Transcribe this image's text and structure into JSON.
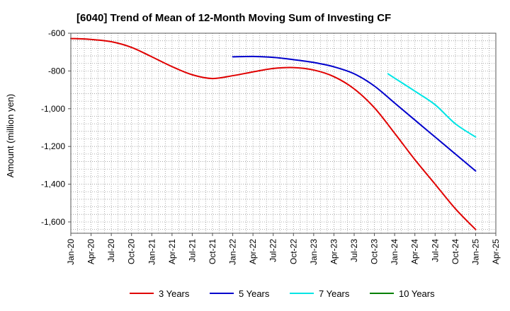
{
  "chart_data": {
    "type": "line",
    "title": "[6040]  Trend of Mean of 12-Month Moving Sum of Investing CF",
    "xlabel": "",
    "ylabel": "Amount (million yen)",
    "ylim": [
      -1660,
      -600
    ],
    "yticks": [
      -600,
      -800,
      -1000,
      -1200,
      -1400,
      -1600
    ],
    "ytick_labels": [
      "-600",
      "-800",
      "-1,000",
      "-1,200",
      "-1,400",
      "-1,600"
    ],
    "xticks": [
      "Jan-20",
      "Apr-20",
      "Jul-20",
      "Oct-20",
      "Jan-21",
      "Apr-21",
      "Jul-21",
      "Oct-21",
      "Jan-22",
      "Apr-22",
      "Jul-22",
      "Oct-22",
      "Jan-23",
      "Apr-23",
      "Jul-23",
      "Oct-23",
      "Jan-24",
      "Apr-24",
      "Jul-24",
      "Oct-24",
      "Jan-25",
      "Apr-25"
    ],
    "x_unit": "quarter index from Jan-20",
    "grid": true,
    "legend_position": "bottom",
    "series": [
      {
        "name": "3 Years",
        "color": "#e00000",
        "x": [
          0,
          1,
          2,
          3,
          4,
          5,
          6,
          7,
          8,
          9,
          10,
          11,
          12,
          13,
          14,
          15,
          16,
          17,
          18,
          19,
          20
        ],
        "values": [
          -628,
          -633,
          -645,
          -675,
          -725,
          -777,
          -820,
          -840,
          -825,
          -805,
          -787,
          -782,
          -795,
          -830,
          -895,
          -995,
          -1130,
          -1270,
          -1400,
          -1530,
          -1640
        ]
      },
      {
        "name": "5 Years",
        "color": "#0000cc",
        "x": [
          8,
          9,
          10,
          11,
          12,
          13,
          14,
          15,
          16,
          17,
          18,
          19,
          20
        ],
        "values": [
          -725,
          -723,
          -728,
          -740,
          -755,
          -778,
          -815,
          -880,
          -970,
          -1060,
          -1150,
          -1240,
          -1330
        ]
      },
      {
        "name": "7 Years",
        "color": "#00e5e5",
        "x": [
          15.67,
          16,
          17,
          18,
          19,
          20
        ],
        "values": [
          -815,
          -838,
          -907,
          -979,
          -1080,
          -1150
        ]
      },
      {
        "name": "10 Years",
        "color": "#008000",
        "x": [],
        "values": []
      }
    ]
  }
}
